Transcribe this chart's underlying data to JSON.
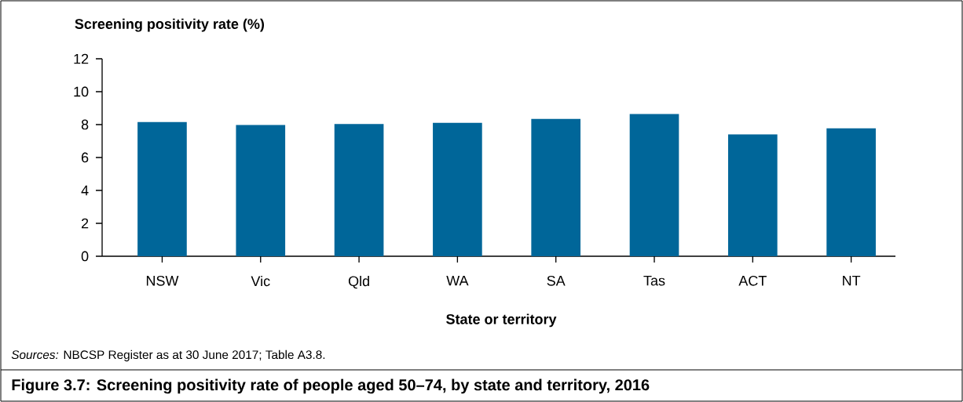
{
  "chart_data": {
    "type": "bar",
    "title": "Figure 3.7: Screening positivity rate of people aged 50–74, by state and territory, 2016",
    "ylabel": "Screening positivity rate (%)",
    "xlabel": "State or territory",
    "annotations": [
      "*Sources:* NBCSP Register as at 30 June 2017; Table A3.8."
    ],
    "categories": [
      "NSW",
      "Vic",
      "Qld",
      "WA",
      "SA",
      "Tas",
      "ACT",
      "NT"
    ],
    "values": [
      8.16,
      7.97,
      8.03,
      8.11,
      8.35,
      8.64,
      7.4,
      7.77
    ],
    "color": "#006699",
    "ylim": [
      0,
      12
    ],
    "yticks": [
      0,
      2,
      4,
      6,
      8,
      10,
      12
    ],
    "grid": false
  }
}
